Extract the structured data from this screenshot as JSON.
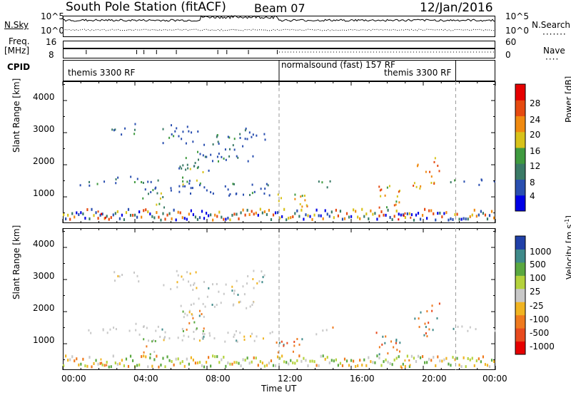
{
  "header": {
    "station": "South Pole Station (fitACF)",
    "beam": "Beam 07",
    "date": "12/Jan/2016"
  },
  "top_strip": {
    "nsky_label": "N.Sky",
    "nsearch_label": "N.Search",
    "nsky_ticks": [
      "10^5",
      "10^0"
    ],
    "nsearch_ticks": [
      "10^5",
      "10^0"
    ],
    "freq_label_1": "Freq.",
    "freq_label_2": "[MHz]",
    "freq_ticks": [
      "16",
      "8"
    ],
    "nave_label": "Nave",
    "nave_ticks": [
      "60",
      "0"
    ],
    "cpid_label": "CPID",
    "cpid_segments": [
      "themis 3300 RF",
      "normalsound (fast) 157 RF",
      "themis 3300 RF"
    ]
  },
  "chart_data": [
    {
      "type": "heatmap",
      "name": "power",
      "ylabel": "Slant Range [km]",
      "yticks": [
        "1000",
        "2000",
        "3000",
        "4000"
      ],
      "ylim": [
        180,
        4600
      ],
      "colorbar_label": "Power [dB]",
      "colorbar_ticks": [
        "4",
        "8",
        "12",
        "16",
        "20",
        "24",
        "28"
      ],
      "colors": [
        "#0000e6",
        "#2a4fb0",
        "#3a7a66",
        "#3f9a3f",
        "#d8c21a",
        "#f08a10",
        "#e64a10",
        "#e60000"
      ]
    },
    {
      "type": "heatmap",
      "name": "velocity",
      "ylabel": "Slant Range [km]",
      "yticks": [
        "1000",
        "2000",
        "3000",
        "4000"
      ],
      "ylim": [
        180,
        4600
      ],
      "colorbar_label": "Velocity [m s^-1]",
      "colorbar_ticks": [
        "1000",
        "500",
        "100",
        "25",
        "-25",
        "-100",
        "-500",
        "-1000"
      ],
      "colors": [
        "#2040a8",
        "#3f8a8a",
        "#5aa840",
        "#b4d23c",
        "#c8c8c8",
        "#f0b422",
        "#ef7a1e",
        "#e84a1e",
        "#e60000"
      ]
    }
  ],
  "xaxis": {
    "ticks": [
      "00:00",
      "04:00",
      "08:00",
      "12:00",
      "16:00",
      "20:00",
      "00:00"
    ],
    "label": "Time UT"
  }
}
